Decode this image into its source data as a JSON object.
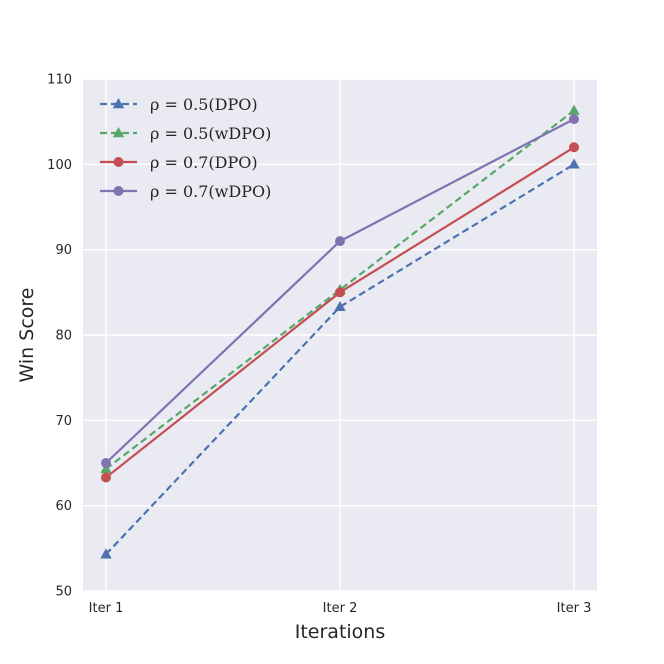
{
  "chart_data": {
    "type": "line",
    "title": "",
    "xlabel": "Iterations",
    "ylabel": "Win Score",
    "categories": [
      "Iter 1",
      "Iter 2",
      "Iter 3"
    ],
    "ylim": [
      50,
      110
    ],
    "yticks": [
      50,
      60,
      70,
      80,
      90,
      100,
      110
    ],
    "grid": true,
    "legend_position": "top-left",
    "series": [
      {
        "name": "ρ = 0.5(DPO)",
        "values": [
          54.3,
          83.3,
          100.0
        ],
        "color": "#4c72b0",
        "line_style": "dashed",
        "marker": "triangle"
      },
      {
        "name": "ρ = 0.5(wDPO)",
        "values": [
          64.3,
          85.3,
          106.3
        ],
        "color": "#55a868",
        "line_style": "dashed",
        "marker": "triangle"
      },
      {
        "name": "ρ = 0.7(DPO)",
        "values": [
          63.3,
          85.0,
          102.0
        ],
        "color": "#c44e52",
        "line_style": "solid",
        "marker": "circle"
      },
      {
        "name": "ρ = 0.7(wDPO)",
        "values": [
          65.0,
          91.0,
          105.3
        ],
        "color": "#8172b2",
        "line_style": "solid",
        "marker": "circle"
      }
    ]
  }
}
